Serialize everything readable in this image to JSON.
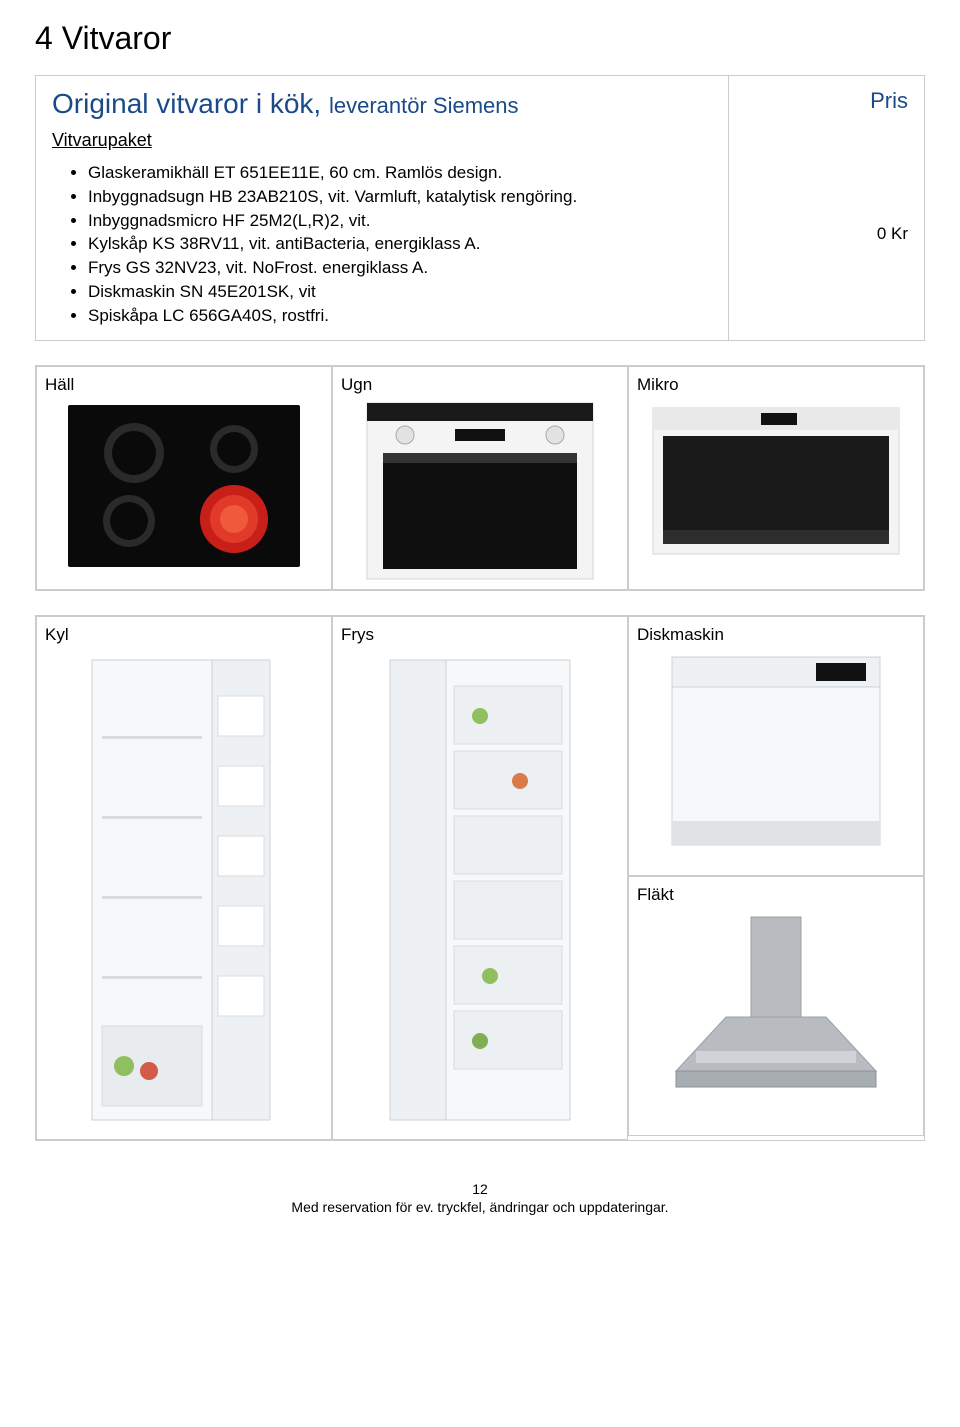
{
  "page_title": "4 Vitvaror",
  "section": {
    "heading_main": "Original vitvaror i kök,",
    "heading_sub": "leverantör Siemens",
    "pris_label": "Pris",
    "subheading": "Vitvarupaket",
    "bullets": [
      "Glaskeramikhäll ET 651EE11E, 60 cm. Ramlös design.",
      "Inbyggnadsugn HB 23AB210S, vit. Varmluft, katalytisk rengöring.",
      "Inbyggnadsmicro HF 25M2(L,R)2, vit.",
      "Kylskåp KS 38RV11, vit. antiBacteria, energiklass A.",
      "Frys GS 32NV23, vit. NoFrost. energiklass A.",
      "Diskmaskin SN 45E201SK, vit",
      "Spiskåpa LC 656GA40S, rostfri."
    ],
    "price_value": "0 Kr"
  },
  "row1_labels": {
    "hall": "Häll",
    "ugn": "Ugn",
    "mikro": "Mikro"
  },
  "row2_labels": {
    "kyl": "Kyl",
    "frys": "Frys",
    "diskmaskin": "Diskmaskin",
    "flakt": "Fläkt"
  },
  "footer": {
    "page_number": "12",
    "disclaimer": "Med reservation för ev. tryckfel, ändringar och uppdateringar."
  },
  "colors": {
    "heading_blue": "#1a4a8a",
    "border_gray": "#cccccc",
    "cooktop_black": "#0a0a0a",
    "burner_red": "#c82018",
    "burner_dark": "#2a2a2a",
    "oven_body": "#f4f4f4",
    "oven_glass": "#0f0f0f",
    "micro_front": "#1a1a1a",
    "appliance_white": "#f7f8f9",
    "stainless": "#b8bcc0",
    "shelf": "#d9dbde"
  }
}
